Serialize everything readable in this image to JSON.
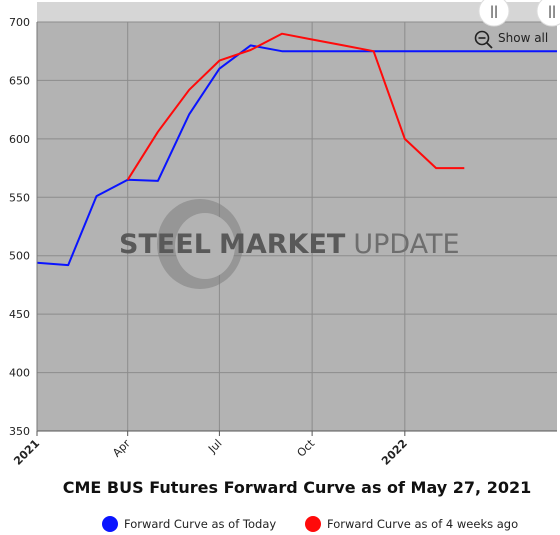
{
  "chart_data": {
    "type": "line",
    "title": "CME BUS Futures Forward Curve as of May 27, 2021",
    "xlabel": "",
    "ylabel": "",
    "ylim": [
      350,
      700
    ],
    "yticks": [
      350,
      400,
      450,
      500,
      550,
      600,
      650,
      700
    ],
    "x_range": [
      "2021-01-01",
      "2022-06-01"
    ],
    "xticks": [
      {
        "label": "2021",
        "date": "2021-01-01",
        "bold": true
      },
      {
        "label": "Apr",
        "date": "2021-04-01",
        "bold": false
      },
      {
        "label": "Jul",
        "date": "2021-07-01",
        "bold": false
      },
      {
        "label": "Oct",
        "date": "2021-10-01",
        "bold": false
      },
      {
        "label": "2022",
        "date": "2022-01-01",
        "bold": true
      }
    ],
    "grid": true,
    "legend": "bottom",
    "series": [
      {
        "name": "Forward Curve as of Today",
        "color": "#0a14ff",
        "x": [
          "2021-01-01",
          "2021-02-01",
          "2021-03-01",
          "2021-04-01",
          "2021-05-01",
          "2021-06-01",
          "2021-07-01",
          "2021-08-01",
          "2021-09-01",
          "2021-10-01",
          "2021-11-01",
          "2021-12-01",
          "2022-01-01",
          "2022-02-01",
          "2022-03-01",
          "2022-04-01",
          "2022-05-01",
          "2022-06-01"
        ],
        "values": [
          494,
          492,
          551,
          565,
          564,
          621,
          660,
          680,
          675,
          675,
          675,
          675,
          675,
          675,
          675,
          675,
          675,
          675
        ]
      },
      {
        "name": "Forward Curve as of 4 weeks ago",
        "color": "#ff0a0a",
        "x": [
          "2021-04-01",
          "2021-05-01",
          "2021-06-01",
          "2021-07-01",
          "2021-08-01",
          "2021-09-01",
          "2021-10-01",
          "2021-11-01",
          "2021-12-01",
          "2022-01-01",
          "2022-02-01",
          "2022-03-01"
        ],
        "values": [
          565,
          606,
          642,
          667,
          676,
          690,
          685,
          680,
          675,
          600,
          575,
          575
        ]
      }
    ]
  },
  "watermark": {
    "word1": "STEEL",
    "word2": "MARKET",
    "word3": "UPDATE"
  },
  "controls": {
    "show_all": "Show all",
    "handle_glyph": "||"
  },
  "colors": {
    "plot_bg": "#b3b3b3",
    "grid": "#8c8c8c",
    "navigator_bg": "#d6d6d6"
  }
}
